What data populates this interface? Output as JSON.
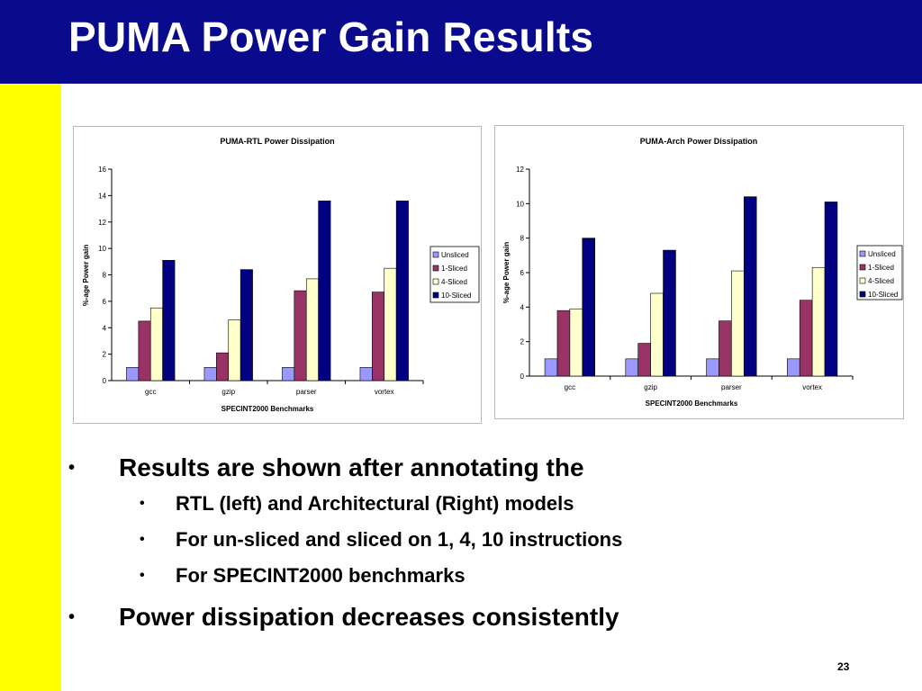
{
  "slide": {
    "title": "PUMA Power Gain Results",
    "page_number": "23",
    "colors": {
      "title_bar": "#0a0a8c",
      "side_bar": "#ffff00"
    }
  },
  "bullets": [
    {
      "level": 1,
      "text": "Results are shown after annotating the"
    },
    {
      "level": 2,
      "text": "RTL (left) and Architectural (Right) models"
    },
    {
      "level": 2,
      "text": "For un-sliced and sliced on 1, 4, 10 instructions"
    },
    {
      "level": 2,
      "text": "For SPECINT2000 benchmarks"
    },
    {
      "level": 1,
      "text": "Power dissipation decreases consistently"
    }
  ],
  "chart_data": [
    {
      "type": "bar",
      "title": "PUMA-RTL Power Dissipation",
      "xlabel": "SPECINT2000 Benchmarks",
      "ylabel": "%-age Power gain",
      "ylim": [
        0,
        16
      ],
      "yticks": [
        0,
        2,
        4,
        6,
        8,
        10,
        12,
        14,
        16
      ],
      "categories": [
        "gcc",
        "gzip",
        "parser",
        "vortex"
      ],
      "legend_position": "right",
      "grid": false,
      "series": [
        {
          "name": "Unsliced",
          "color": "#9999ff",
          "values": [
            1,
            1,
            1,
            1
          ]
        },
        {
          "name": "1-Sliced",
          "color": "#993366",
          "values": [
            4.5,
            2.1,
            6.8,
            6.7
          ]
        },
        {
          "name": "4-Sliced",
          "color": "#ffffcc",
          "values": [
            5.5,
            4.6,
            7.7,
            8.5
          ]
        },
        {
          "name": "10-Sliced",
          "color": "#000080",
          "values": [
            9.1,
            8.4,
            13.6,
            13.6
          ]
        }
      ]
    },
    {
      "type": "bar",
      "title": "PUMA-Arch Power Dissipation",
      "xlabel": "SPECINT2000 Benchmarks",
      "ylabel": "%-age Power gain",
      "ylim": [
        0,
        12
      ],
      "yticks": [
        0,
        2,
        4,
        6,
        8,
        10,
        12
      ],
      "categories": [
        "gcc",
        "gzip",
        "parser",
        "vortex"
      ],
      "legend_position": "right",
      "grid": false,
      "series": [
        {
          "name": "Unsliced",
          "color": "#9999ff",
          "values": [
            1,
            1,
            1,
            1
          ]
        },
        {
          "name": "1-Sliced",
          "color": "#993366",
          "values": [
            3.8,
            1.9,
            3.2,
            4.4
          ]
        },
        {
          "name": "4-Sliced",
          "color": "#ffffcc",
          "values": [
            3.9,
            4.8,
            6.1,
            6.3
          ]
        },
        {
          "name": "10-Sliced",
          "color": "#000080",
          "values": [
            8.0,
            7.3,
            10.4,
            10.1
          ]
        }
      ]
    }
  ]
}
